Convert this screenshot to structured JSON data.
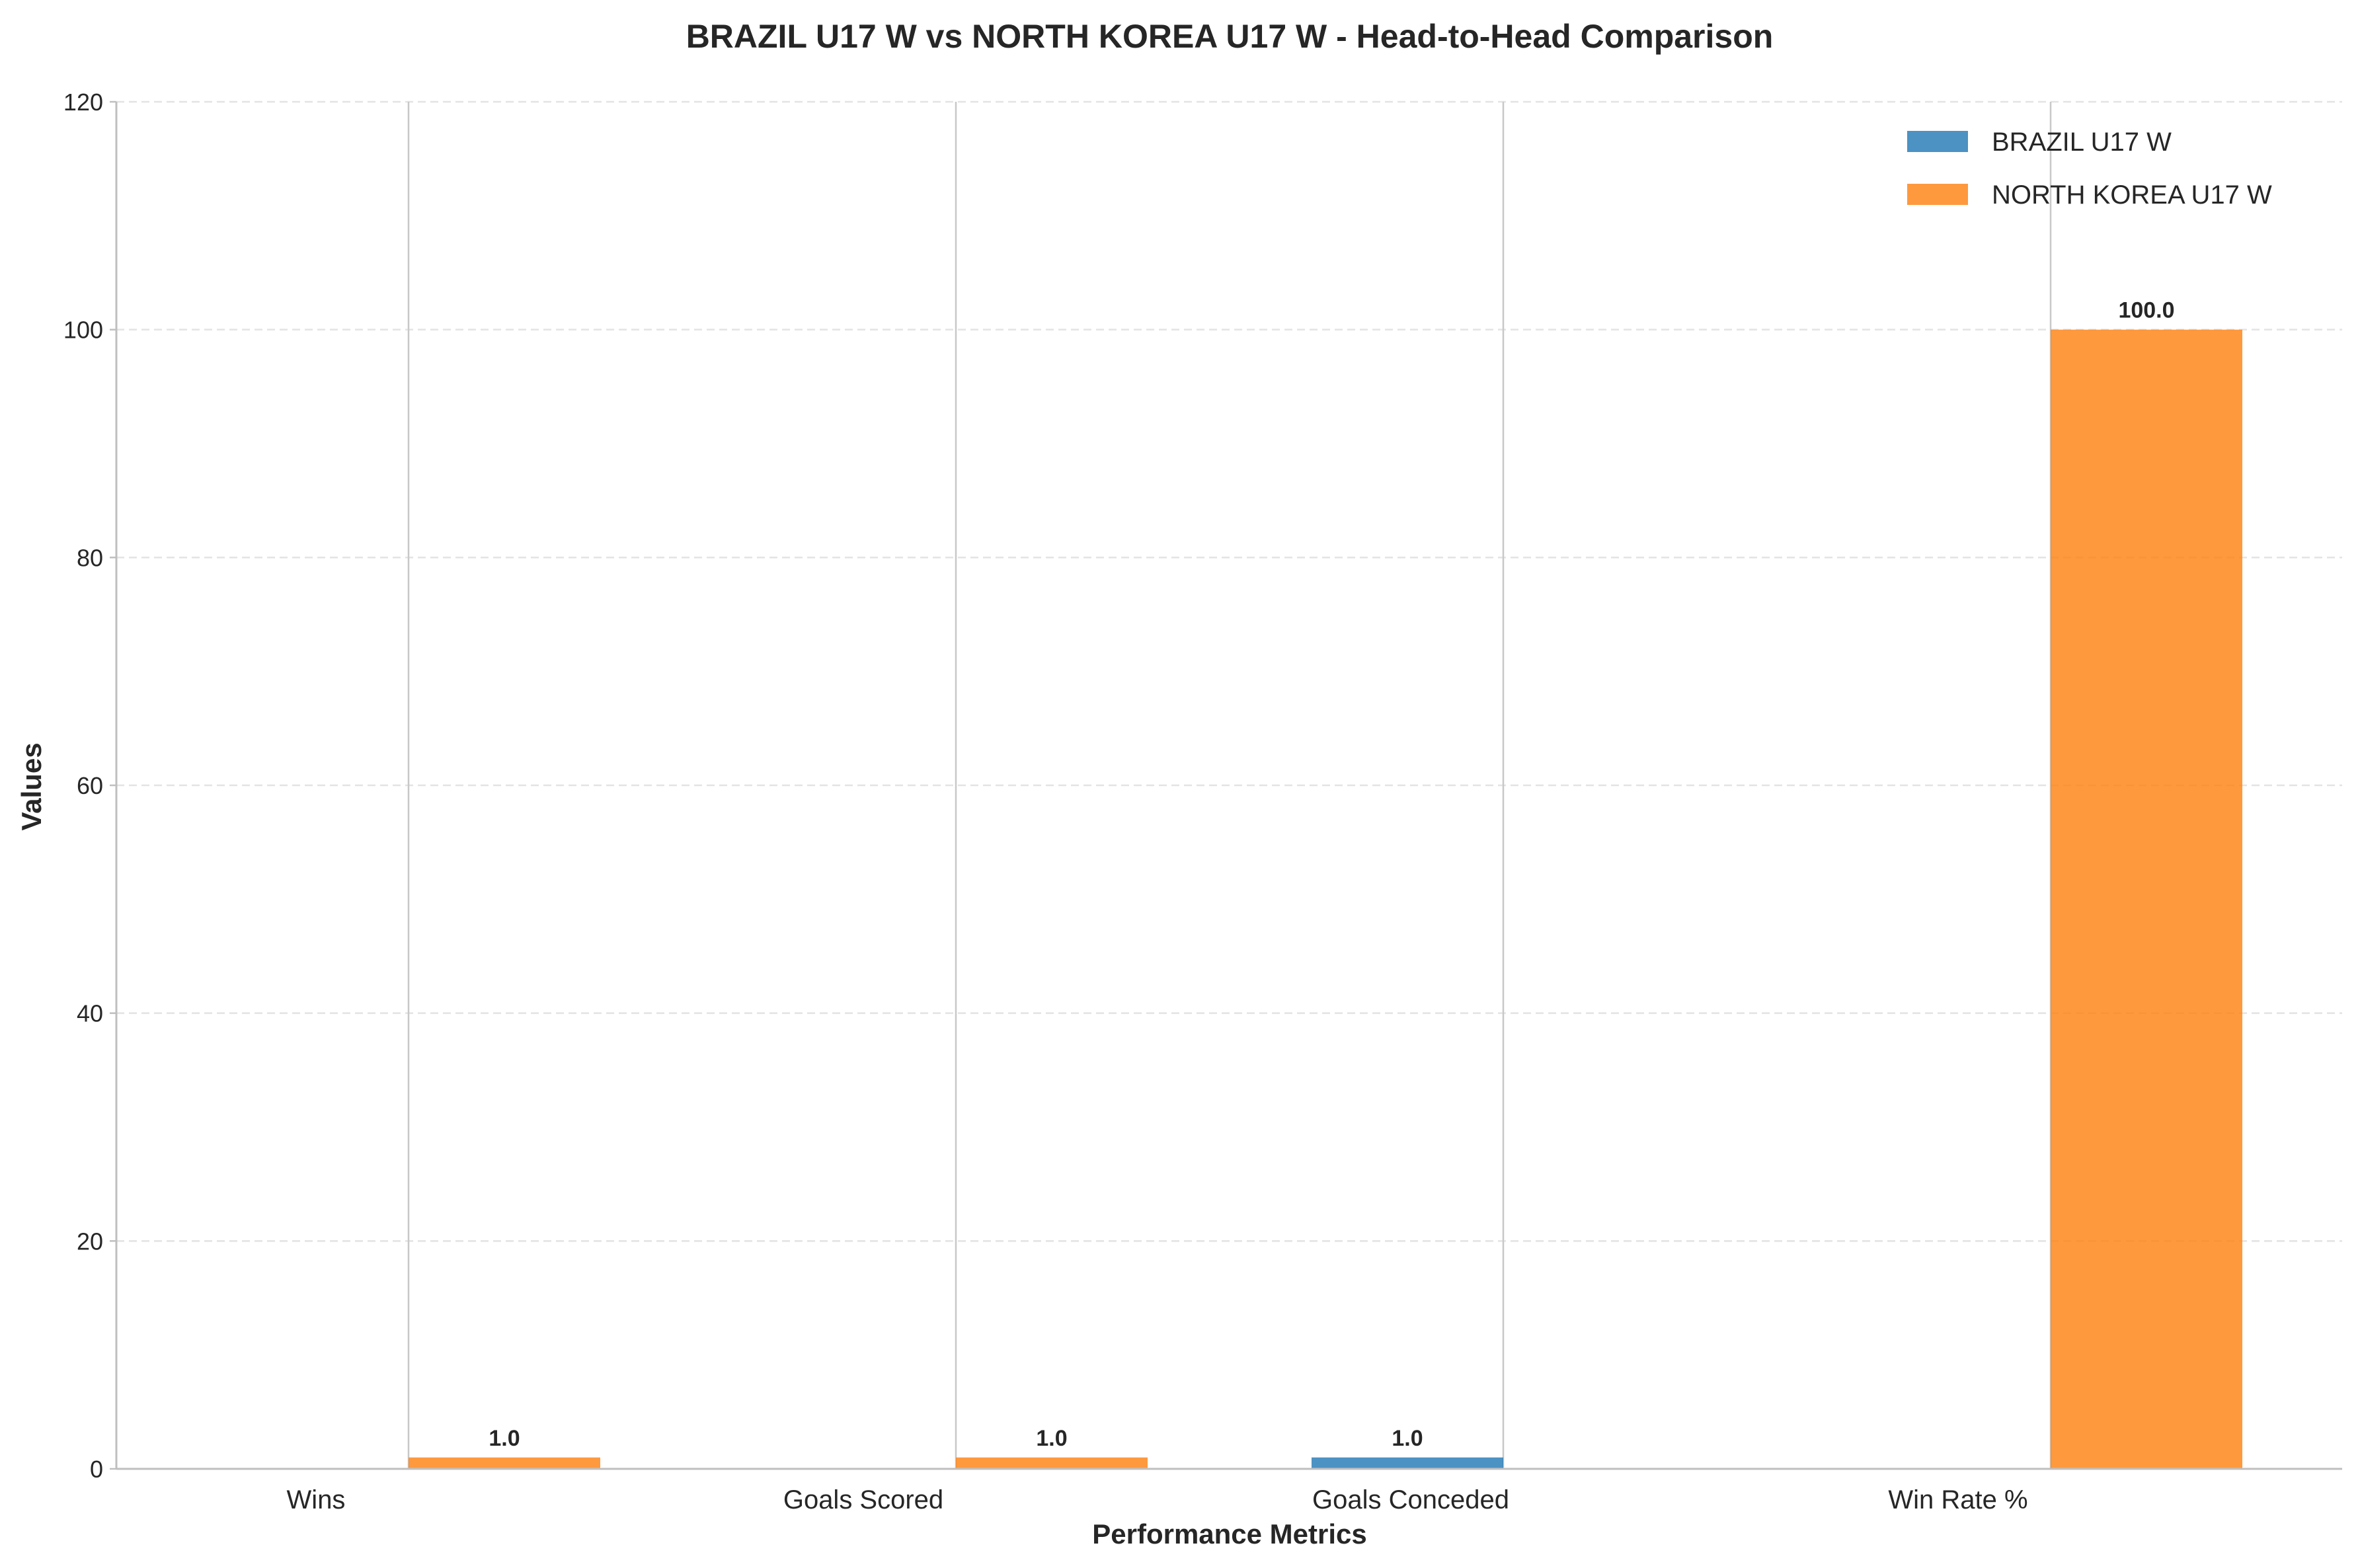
{
  "chart_data": {
    "type": "bar",
    "title": "BRAZIL U17 W vs NORTH KOREA U17 W - Head-to-Head Comparison",
    "xlabel": "Performance Metrics",
    "ylabel": "Values",
    "categories": [
      "Wins",
      "Goals Scored",
      "Goals Conceded",
      "Win Rate %"
    ],
    "series": [
      {
        "name": "BRAZIL U17 W",
        "color": "#1f77b4",
        "values": [
          0,
          0,
          1.0,
          0
        ]
      },
      {
        "name": "NORTH KOREA U17 W",
        "color": "#ff7f0e",
        "values": [
          1.0,
          1.0,
          0,
          100.0
        ]
      }
    ],
    "ylim": [
      0,
      120
    ],
    "yticks": [
      0,
      20,
      40,
      60,
      80,
      100,
      120
    ],
    "grid": true,
    "legend_position": "top-right",
    "bar_labels": [
      "",
      "1.0",
      "",
      "1.0",
      "1.0",
      "",
      "",
      "100.0"
    ]
  }
}
